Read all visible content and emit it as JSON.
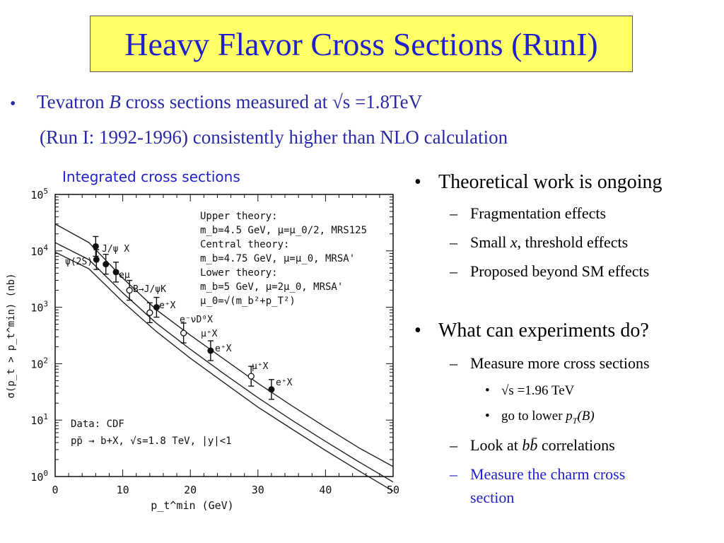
{
  "title": "Heavy Flavor Cross Sections (RunI)",
  "intro": {
    "line1_pre": "Tevatron ",
    "line1_em": "B",
    "line1_post": " cross sections measured at √s =1.8TeV",
    "line2": "(Run I:   1992-1996) consistently higher than NLO calculation"
  },
  "plot_caption": "Integrated cross sections",
  "chart_data": {
    "type": "scatter",
    "xlabel": "p_t^min (GeV)",
    "ylabel": "σ(p_t > p_t^min) (nb)",
    "xlim": [
      0,
      50
    ],
    "ylim_log10": [
      0,
      5
    ],
    "yscale": "log",
    "x_ticks": [
      "0",
      "10",
      "20",
      "30",
      "40",
      "50"
    ],
    "y_ticks": [
      "10^0",
      "10^1",
      "10^2",
      "10^3",
      "10^4",
      "10^5"
    ],
    "theory_text": [
      "Upper theory:",
      "m_b=4.5 GeV, μ=μ_0/2, MRS125",
      "Central theory:",
      "m_b=4.75 GeV, μ=μ_0, MRSA'",
      "Lower theory:",
      "m_b=5 GeV, μ=2μ_0, MRSA'",
      "μ_0=√(m_b²+p_T²)"
    ],
    "data_legend": [
      "Data: CDF",
      "pp̄ → b+X, √s=1.8 TeV, |y|<1"
    ],
    "series": [
      {
        "name": "J/ψ X",
        "points": [
          {
            "x": 6,
            "y": 12000
          },
          {
            "x": 6.1,
            "y": 7000
          }
        ]
      },
      {
        "name": "ψ(2S)",
        "points": [
          {
            "x": 7.5,
            "y": 5800
          }
        ]
      },
      {
        "name": "eμ",
        "points": [
          {
            "x": 9,
            "y": 4200
          }
        ]
      },
      {
        "name": "B→J/ψK",
        "points": [
          {
            "x": 11,
            "y": 2000
          }
        ]
      },
      {
        "name": "e⁺X",
        "points": [
          {
            "x": 15,
            "y": 1000
          },
          {
            "x": 23,
            "y": 170
          },
          {
            "x": 32,
            "y": 35
          }
        ]
      },
      {
        "name": "e⁻νD⁰X",
        "points": [
          {
            "x": 14,
            "y": 800
          }
        ]
      },
      {
        "name": "μ⁺X",
        "points": [
          {
            "x": 19,
            "y": 350
          },
          {
            "x": 29,
            "y": 60
          }
        ]
      }
    ],
    "point_labels": {
      "jpsi": "J/ψ X",
      "psi2s": "ψ(2S)",
      "emu": "eμ",
      "bjpsik": "B→J/ψK",
      "eplus1": "e⁺X",
      "enud": "e⁻νD⁰X",
      "muplus1": "μ⁺X",
      "eplus2": "e⁺X",
      "muplus2": "μ⁺X",
      "eplus3": "e⁺X"
    },
    "theory_curves": [
      {
        "points": [
          {
            "x": 0,
            "y": 30000
          },
          {
            "x": 5,
            "y": 14000
          },
          {
            "x": 10,
            "y": 3300
          },
          {
            "x": 15,
            "y": 900
          },
          {
            "x": 20,
            "y": 320
          },
          {
            "x": 25,
            "y": 120
          },
          {
            "x": 30,
            "y": 45
          },
          {
            "x": 35,
            "y": 18
          },
          {
            "x": 40,
            "y": 7.5
          },
          {
            "x": 45,
            "y": 3.2
          },
          {
            "x": 50,
            "y": 1.5
          }
        ]
      },
      {
        "points": [
          {
            "x": 0,
            "y": 14000
          },
          {
            "x": 5,
            "y": 7000
          },
          {
            "x": 10,
            "y": 1800
          },
          {
            "x": 15,
            "y": 520
          },
          {
            "x": 20,
            "y": 180
          },
          {
            "x": 25,
            "y": 66
          },
          {
            "x": 30,
            "y": 25
          },
          {
            "x": 35,
            "y": 10
          },
          {
            "x": 40,
            "y": 4.2
          },
          {
            "x": 45,
            "y": 1.8
          },
          {
            "x": 50,
            "y": 0.8
          }
        ]
      },
      {
        "points": [
          {
            "x": 0,
            "y": 9500
          },
          {
            "x": 5,
            "y": 4800
          },
          {
            "x": 10,
            "y": 1250
          },
          {
            "x": 15,
            "y": 370
          },
          {
            "x": 20,
            "y": 125
          },
          {
            "x": 25,
            "y": 46
          },
          {
            "x": 30,
            "y": 17
          },
          {
            "x": 35,
            "y": 7
          },
          {
            "x": 40,
            "y": 2.9
          },
          {
            "x": 45,
            "y": 1.25
          },
          {
            "x": 50,
            "y": 0.55
          }
        ]
      }
    ]
  },
  "right_panel": {
    "b1": "Theoretical work is ongoing",
    "b1_subs": [
      "Fragmentation effects",
      "threshold effects",
      "Proposed beyond SM effects"
    ],
    "b1_sub2_pre": "Small ",
    "b1_sub2_em": "x",
    "b1_sub2_post": ",",
    "b2": "What can experiments do?",
    "b2_sub1": "Measure more cross sections",
    "b2_sub1_items": [
      "√s =1.96 TeV"
    ],
    "b2_sub1_item2_pre": "go to lower ",
    "b2_sub1_item2_em": "p",
    "b2_sub1_item2_sub": "T",
    "b2_sub1_item2_post": "(B)",
    "b2_sub2_pre": "Look at ",
    "b2_sub2_em": "bb̄",
    "b2_sub2_post": " correlations",
    "b2_sub3_line1": "Measure the charm cross",
    "b2_sub3_line2": "section"
  },
  "colors": {
    "title_bg": "#ffff66",
    "title_text": "#1f1fcc",
    "intro_text": "#2a2aa8",
    "highlight_text": "#1f1fcc"
  }
}
